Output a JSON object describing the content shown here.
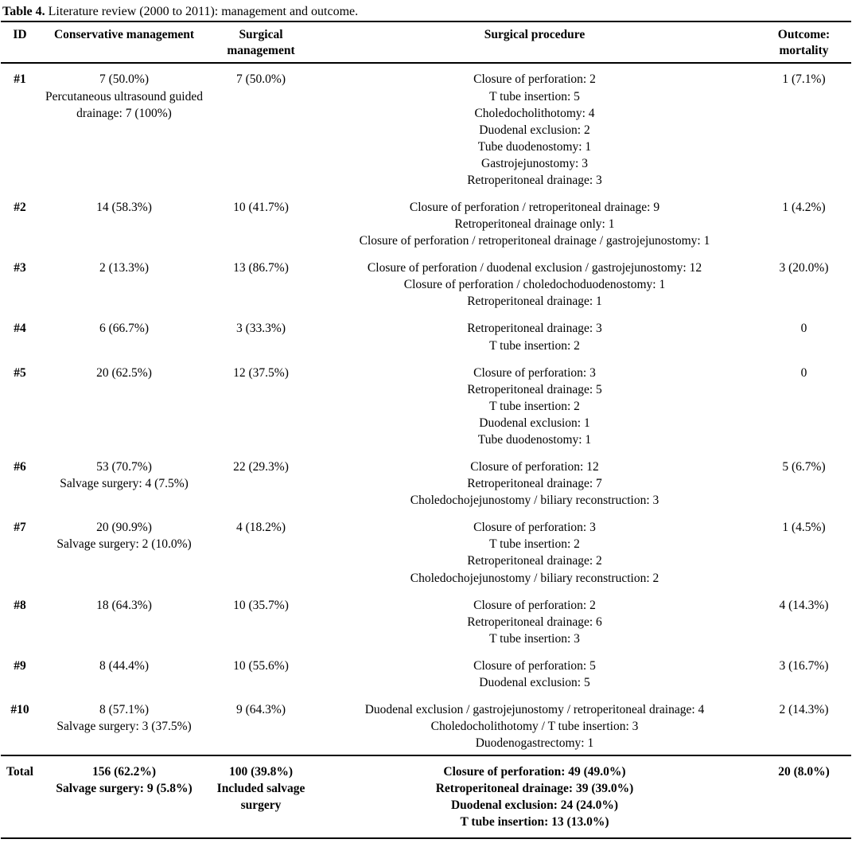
{
  "caption": {
    "label": "Table 4.",
    "text": " Literature review (2000 to 2011): management and outcome."
  },
  "table": {
    "columns": [
      "ID",
      "Conservative management",
      "Surgical management",
      "Surgical procedure",
      "Outcome: mortality"
    ],
    "rows": [
      {
        "id": "#1",
        "conservative": [
          "7 (50.0%)",
          "Percutaneous ultrasound guided drainage: 7 (100%)"
        ],
        "surgical": [
          "7 (50.0%)"
        ],
        "procedures": [
          "Closure of perforation: 2",
          "T tube insertion: 5",
          "Choledocholithotomy: 4",
          "Duodenal exclusion: 2",
          "Tube duodenostomy: 1",
          "Gastrojejunostomy: 3",
          "Retroperitoneal drainage: 3"
        ],
        "outcome": [
          "1 (7.1%)"
        ]
      },
      {
        "id": "#2",
        "conservative": [
          "14 (58.3%)"
        ],
        "surgical": [
          "10 (41.7%)"
        ],
        "procedures": [
          "Closure of perforation / retroperitoneal drainage: 9",
          "Retroperitoneal drainage only: 1",
          "Closure of perforation / retroperitoneal drainage / gastrojejunostomy: 1"
        ],
        "outcome": [
          "1 (4.2%)"
        ]
      },
      {
        "id": "#3",
        "conservative": [
          "2 (13.3%)"
        ],
        "surgical": [
          "13 (86.7%)"
        ],
        "procedures": [
          "Closure of perforation / duodenal exclusion / gastrojejunostomy: 12",
          "Closure of perforation / choledochoduodenostomy: 1",
          "Retroperitoneal drainage: 1"
        ],
        "outcome": [
          "3 (20.0%)"
        ]
      },
      {
        "id": "#4",
        "conservative": [
          "6 (66.7%)"
        ],
        "surgical": [
          "3 (33.3%)"
        ],
        "procedures": [
          "Retroperitoneal drainage: 3",
          "T tube insertion: 2"
        ],
        "outcome": [
          "0"
        ]
      },
      {
        "id": "#5",
        "conservative": [
          "20 (62.5%)"
        ],
        "surgical": [
          "12 (37.5%)"
        ],
        "procedures": [
          "Closure of perforation: 3",
          "Retroperitoneal drainage: 5",
          "T tube insertion: 2",
          "Duodenal exclusion: 1",
          "Tube duodenostomy: 1"
        ],
        "outcome": [
          "0"
        ]
      },
      {
        "id": "#6",
        "conservative": [
          "53 (70.7%)",
          "Salvage surgery: 4 (7.5%)"
        ],
        "surgical": [
          "22 (29.3%)"
        ],
        "procedures": [
          "Closure of perforation: 12",
          "Retroperitoneal drainage: 7",
          "Choledochojejunostomy / biliary reconstruction: 3"
        ],
        "outcome": [
          "5 (6.7%)"
        ]
      },
      {
        "id": "#7",
        "conservative": [
          "20 (90.9%)",
          "Salvage surgery: 2 (10.0%)"
        ],
        "surgical": [
          "4 (18.2%)"
        ],
        "procedures": [
          "Closure of perforation: 3",
          "T tube insertion: 2",
          "Retroperitoneal drainage: 2",
          "Choledochojejunostomy / biliary reconstruction: 2"
        ],
        "outcome": [
          "1 (4.5%)"
        ]
      },
      {
        "id": "#8",
        "conservative": [
          "18 (64.3%)"
        ],
        "surgical": [
          "10 (35.7%)"
        ],
        "procedures": [
          "Closure of perforation: 2",
          "Retroperitoneal drainage: 6",
          "T tube insertion: 3"
        ],
        "outcome": [
          "4 (14.3%)"
        ]
      },
      {
        "id": "#9",
        "conservative": [
          "8 (44.4%)"
        ],
        "surgical": [
          "10 (55.6%)"
        ],
        "procedures": [
          "Closure of perforation: 5",
          "Duodenal exclusion: 5"
        ],
        "outcome": [
          "3 (16.7%)"
        ]
      },
      {
        "id": "#10",
        "conservative": [
          "8 (57.1%)",
          "Salvage surgery: 3 (37.5%)"
        ],
        "surgical": [
          "9 (64.3%)"
        ],
        "procedures": [
          "Duodenal exclusion / gastrojejunostomy / retroperitoneal drainage: 4",
          "Choledocholithotomy / T tube insertion: 3",
          "Duodenogastrectomy: 1"
        ],
        "outcome": [
          "2 (14.3%)"
        ]
      }
    ],
    "total": {
      "id": "Total",
      "conservative": [
        "156 (62.2%)",
        "Salvage surgery: 9 (5.8%)"
      ],
      "surgical": [
        "100 (39.8%)",
        "Included salvage surgery"
      ],
      "procedures": [
        "Closure of perforation: 49 (49.0%)",
        "Retroperitoneal drainage: 39 (39.0%)",
        "Duodenal exclusion: 24 (24.0%)",
        "T tube insertion: 13 (13.0%)"
      ],
      "outcome": [
        "20 (8.0%)"
      ]
    }
  }
}
